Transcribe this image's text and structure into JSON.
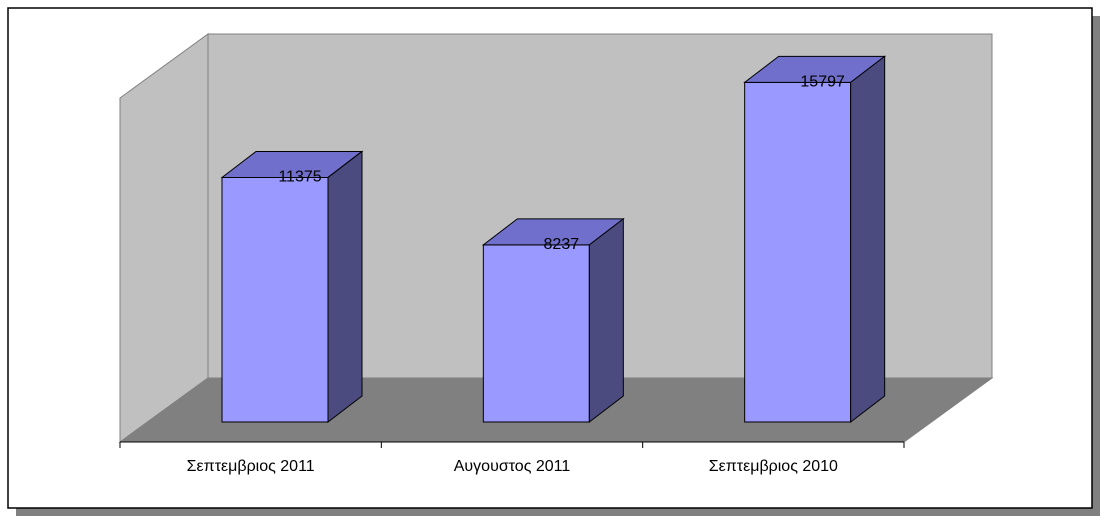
{
  "chart_data": {
    "type": "bar3d",
    "categories": [
      "Σεπτεμβριος 2011",
      "Αυγουστος 2011",
      "Σεπτεμβριος 2010"
    ],
    "values": [
      11375,
      8237,
      15797
    ],
    "color": "#9999ff",
    "ylim": [
      0,
      16000
    ]
  }
}
